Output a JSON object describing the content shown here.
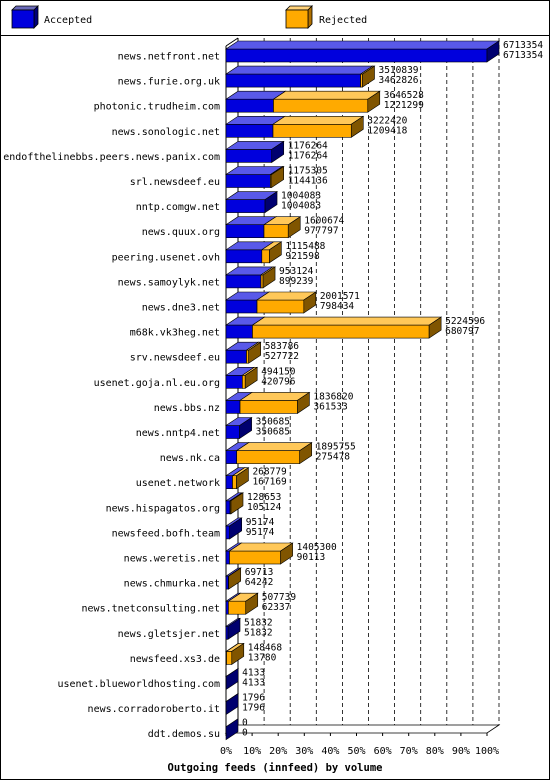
{
  "chart_data": {
    "type": "bar",
    "orientation": "horizontal",
    "stacked": true,
    "title": "",
    "xlabel": "Outgoing feeds (innfeed) by volume",
    "ylabel": "",
    "xlim": [
      0,
      100
    ],
    "x_ticks": [
      "0%",
      "10%",
      "20%",
      "30%",
      "40%",
      "50%",
      "60%",
      "70%",
      "80%",
      "90%",
      "100%"
    ],
    "grid": "vertical-dashed",
    "legend": "top",
    "colors": {
      "Accepted": "#0000dd",
      "Rejected": "#ffaa00"
    },
    "series": [
      {
        "name": "Accepted",
        "color": "#0000dd"
      },
      {
        "name": "Rejected",
        "color": "#ffaa00"
      }
    ],
    "categories": [
      "news.netfront.net",
      "news.furie.org.uk",
      "photonic.trudheim.com",
      "news.sonologic.net",
      "endofthelinebbs.peers.news.panix.com",
      "srl.newsdeef.eu",
      "nntp.comgw.net",
      "news.quux.org",
      "peering.usenet.ovh",
      "news.samoylyk.net",
      "news.dne3.net",
      "m68k.vk3heg.net",
      "srv.newsdeef.eu",
      "usenet.goja.nl.eu.org",
      "news.bbs.nz",
      "news.nntp4.net",
      "news.nk.ca",
      "usenet.network",
      "news.hispagatos.org",
      "newsfeed.bofh.team",
      "news.weretis.net",
      "news.chmurka.net",
      "news.tnetconsulting.net",
      "news.gletsjer.net",
      "newsfeed.xs3.de",
      "usenet.blueworldhosting.com",
      "news.corradoroberto.it",
      "ddt.demos.su"
    ],
    "offered": [
      6713354,
      3510839,
      3646528,
      3222420,
      1176264,
      1175305,
      1004083,
      1600674,
      1115488,
      953124,
      2001571,
      5224596,
      583786,
      494150,
      1836820,
      350685,
      1895755,
      268779,
      128653,
      95174,
      1405300,
      69713,
      507739,
      51832,
      148468,
      4133,
      1796,
      0
    ],
    "accepted": [
      6713354,
      3462826,
      1221299,
      1209418,
      1176264,
      1144136,
      1004083,
      977797,
      921598,
      899239,
      798434,
      680797,
      527722,
      420796,
      361533,
      350685,
      275478,
      167169,
      105124,
      95174,
      90113,
      64242,
      62337,
      51832,
      13780,
      4133,
      1796,
      0
    ]
  }
}
